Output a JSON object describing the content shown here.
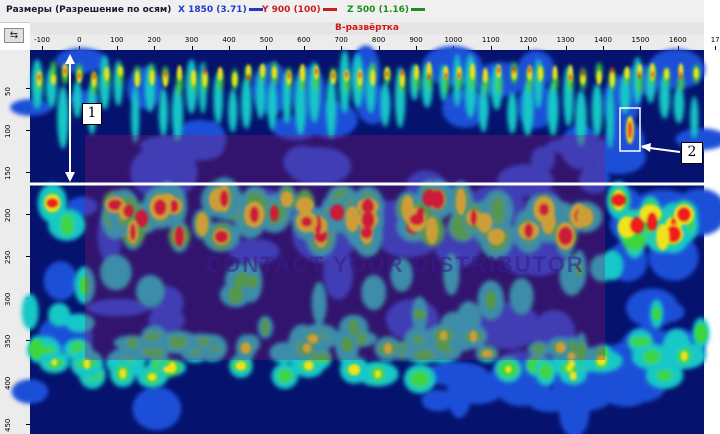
{
  "status_bar": {
    "title": "Размеры (Разрешение по осям)",
    "x_readout": "X 1850 (3.71)",
    "y_readout": "Y 900 (100)",
    "z_readout": "Z 500 (1.16)"
  },
  "panel": {
    "title": "B-развёртка",
    "corner_button_icon": "⇆"
  },
  "x_axis": {
    "ticks": [
      "-100",
      "0",
      "100",
      "200",
      "300",
      "400",
      "500",
      "600",
      "700",
      "800",
      "900",
      "1000",
      "1100",
      "1200",
      "1300",
      "1400",
      "1500",
      "1600",
      "17"
    ]
  },
  "y_axis": {
    "ticks": [
      "50",
      "100",
      "150",
      "200",
      "250",
      "300",
      "350",
      "400",
      "450"
    ]
  },
  "overlay": {
    "watermark": "CONTACT YOUR DISTRIBUTOR",
    "marker_1": "1",
    "marker_2": "2"
  },
  "colors": {
    "background": "#05126e",
    "low": "#1f4fd8",
    "mid": "#12c8c8",
    "mid_high": "#3ed63e",
    "high": "#f0e21e",
    "peak": "#ee1e1e",
    "watermark_tint": "#8a1a6e",
    "annotation": "#ffffff"
  }
}
